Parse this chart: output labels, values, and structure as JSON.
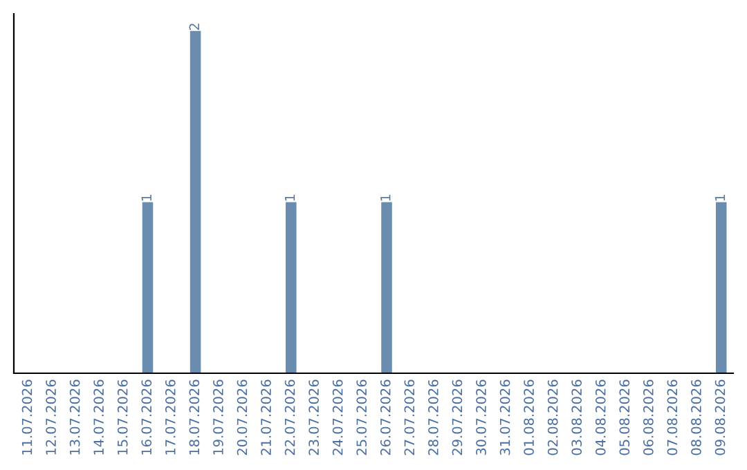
{
  "chart_data": {
    "type": "bar",
    "categories": [
      "11.07.2026",
      "12.07.2026",
      "13.07.2026",
      "14.07.2026",
      "15.07.2026",
      "16.07.2026",
      "17.07.2026",
      "18.07.2026",
      "19.07.2026",
      "20.07.2026",
      "21.07.2026",
      "22.07.2026",
      "23.07.2026",
      "24.07.2026",
      "25.07.2026",
      "26.07.2026",
      "27.07.2026",
      "28.07.2026",
      "29.07.2026",
      "30.07.2026",
      "31.07.2026",
      "01.08.2026",
      "02.08.2026",
      "03.08.2026",
      "04.08.2026",
      "05.08.2026",
      "06.08.2026",
      "07.08.2026",
      "08.08.2026",
      "09.08.2026"
    ],
    "values": [
      0,
      0,
      0,
      0,
      0,
      1,
      0,
      2,
      0,
      0,
      0,
      1,
      0,
      0,
      0,
      1,
      0,
      0,
      0,
      0,
      0,
      0,
      0,
      0,
      0,
      0,
      0,
      0,
      0,
      1
    ],
    "value_labels": [
      null,
      null,
      null,
      null,
      null,
      "1",
      null,
      "2",
      null,
      null,
      null,
      "1",
      null,
      null,
      null,
      "1",
      null,
      null,
      null,
      null,
      null,
      null,
      null,
      null,
      null,
      null,
      null,
      null,
      null,
      "1"
    ],
    "color": "#6a8caf",
    "grid": false,
    "legend": false
  }
}
